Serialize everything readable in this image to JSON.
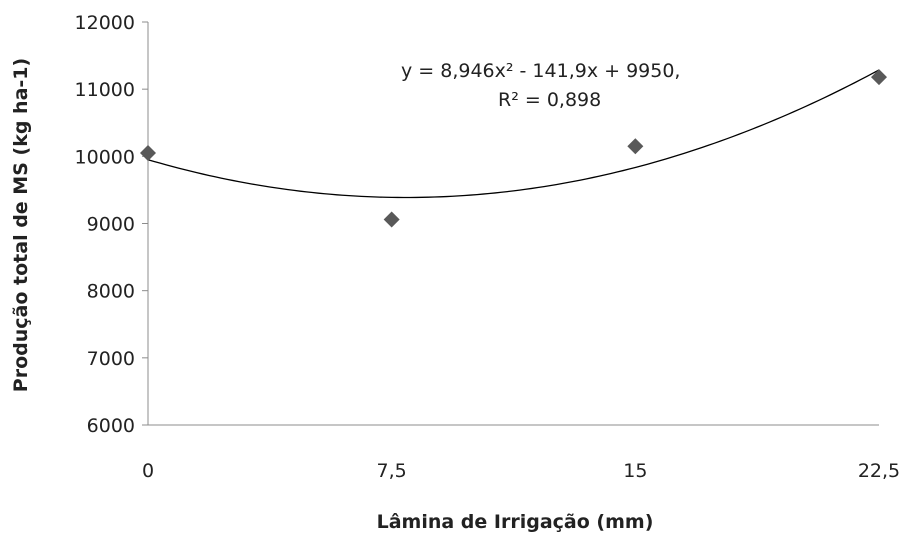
{
  "chart_data": {
    "type": "scatter",
    "xlabel": "Lâmina de Irrigação (mm)",
    "ylabel": "Produção total de MS (kg ha-1)",
    "xlim": [
      0,
      22.5
    ],
    "ylim": [
      6000,
      12000
    ],
    "x_ticks": [
      "0",
      "7,5",
      "15",
      "22,5"
    ],
    "x_tick_values": [
      0,
      7.5,
      15,
      22.5
    ],
    "y_ticks": [
      "6000",
      "7000",
      "8000",
      "9000",
      "10000",
      "11000",
      "12000"
    ],
    "y_tick_values": [
      6000,
      7000,
      8000,
      9000,
      10000,
      11000,
      12000
    ],
    "grid": false,
    "legend": "none",
    "marker": "diamond",
    "marker_color": "#595959",
    "series": [
      {
        "x": [
          0,
          7.5,
          15,
          22.5
        ],
        "y": [
          10050,
          9060,
          10150,
          11180
        ]
      }
    ],
    "trendline": {
      "type": "polynomial",
      "coefficients": [
        8.946,
        -141.9,
        9950
      ],
      "equation_label": "y = 8,946x² - 141,9x + 9950,",
      "r2_label": "R² = 0,898",
      "color": "#000000"
    }
  }
}
